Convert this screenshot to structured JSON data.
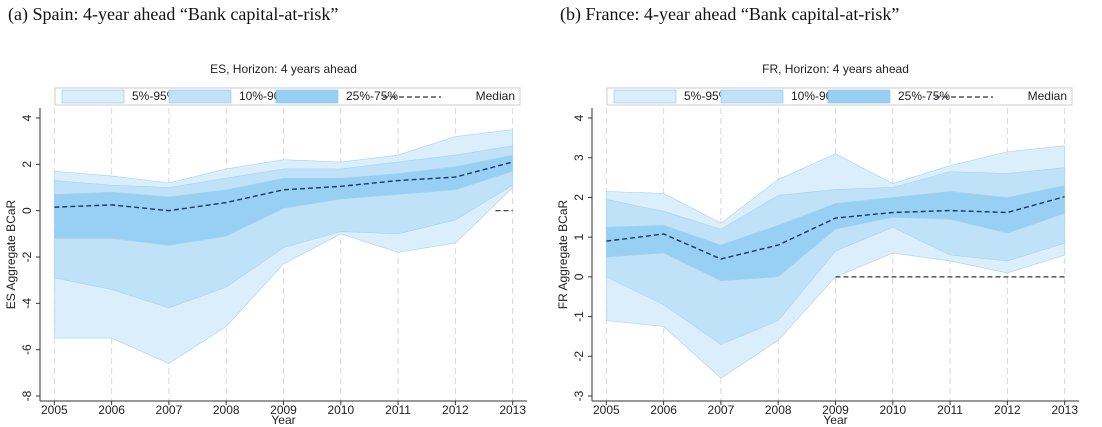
{
  "chart_data": [
    {
      "type": "fan",
      "caption": "(a) Spain: 4-year ahead “Bank capital-at-risk”",
      "title": "ES, Horizon: 4 years ahead",
      "x_label": "Year",
      "y_label": "ES Aggregate BCaR",
      "x": [
        2005,
        2006,
        2007,
        2008,
        2009,
        2010,
        2011,
        2012,
        2013
      ],
      "xlim": [
        2004.75,
        2013.25
      ],
      "xticks": [
        2005,
        2006,
        2007,
        2008,
        2009,
        2010,
        2011,
        2012,
        2013
      ],
      "ylim": [
        -8,
        4
      ],
      "yticks": [
        -8,
        -6,
        -4,
        -2,
        0,
        2,
        4
      ],
      "bands": [
        {
          "name": "5%-95%",
          "color": "#dbeefc",
          "lower": [
            -5.5,
            -5.5,
            -6.6,
            -5.0,
            -2.3,
            -1.0,
            -1.8,
            -1.4,
            1.0
          ],
          "upper": [
            1.7,
            1.5,
            1.2,
            1.8,
            2.2,
            2.1,
            2.4,
            3.2,
            3.5
          ]
        },
        {
          "name": "10%-90%",
          "color": "#c0e2f8",
          "lower": [
            -2.9,
            -3.4,
            -4.2,
            -3.3,
            -1.6,
            -0.9,
            -1.0,
            -0.4,
            1.1
          ],
          "upper": [
            1.3,
            1.1,
            1.0,
            1.4,
            1.8,
            1.8,
            2.1,
            2.4,
            2.8
          ]
        },
        {
          "name": "25%-75%",
          "color": "#97d0f3",
          "lower": [
            -1.2,
            -1.2,
            -1.5,
            -1.1,
            0.1,
            0.5,
            0.7,
            0.9,
            1.7
          ],
          "upper": [
            0.7,
            0.8,
            0.6,
            0.9,
            1.4,
            1.4,
            1.6,
            1.9,
            2.4
          ]
        }
      ],
      "series": [
        {
          "name": "Median",
          "color": "#1b3668",
          "values": [
            0.15,
            0.25,
            0.0,
            0.35,
            0.9,
            1.05,
            1.3,
            1.45,
            2.1
          ]
        }
      ],
      "hline": {
        "y": 0,
        "x": [
          2012.7,
          2013
        ],
        "color": "#333333"
      },
      "grid": true
    },
    {
      "type": "fan",
      "caption": "(b) France: 4-year ahead “Bank capital-at-risk”",
      "title": "FR, Horizon: 4 years ahead",
      "x_label": "Year",
      "y_label": "FR Aggregate BCaR",
      "x": [
        2005,
        2006,
        2007,
        2008,
        2009,
        2010,
        2011,
        2012,
        2013
      ],
      "xlim": [
        2004.75,
        2013.25
      ],
      "xticks": [
        2005,
        2006,
        2007,
        2008,
        2009,
        2010,
        2011,
        2012,
        2013
      ],
      "ylim": [
        -3,
        4
      ],
      "yticks": [
        -3,
        -2,
        -1,
        0,
        1,
        2,
        3,
        4
      ],
      "bands": [
        {
          "name": "5%-95%",
          "color": "#dbeefc",
          "lower": [
            -1.1,
            -1.25,
            -2.55,
            -1.6,
            0.0,
            0.6,
            0.4,
            0.1,
            0.55
          ],
          "upper": [
            2.15,
            2.1,
            1.35,
            2.45,
            3.1,
            2.35,
            2.8,
            3.15,
            3.3
          ]
        },
        {
          "name": "10%-90%",
          "color": "#c0e2f8",
          "lower": [
            0.0,
            -0.7,
            -1.7,
            -1.1,
            0.65,
            1.25,
            0.55,
            0.4,
            0.85
          ],
          "upper": [
            1.95,
            1.65,
            1.2,
            2.05,
            2.2,
            2.25,
            2.65,
            2.6,
            2.75
          ]
        },
        {
          "name": "25%-75%",
          "color": "#97d0f3",
          "lower": [
            0.5,
            0.6,
            -0.1,
            0.0,
            1.2,
            1.5,
            1.45,
            1.1,
            1.6
          ],
          "upper": [
            1.25,
            1.3,
            0.8,
            1.3,
            1.85,
            2.0,
            2.15,
            2.0,
            2.3
          ]
        }
      ],
      "series": [
        {
          "name": "Median",
          "color": "#1b3668",
          "values": [
            0.9,
            1.08,
            0.45,
            0.8,
            1.48,
            1.62,
            1.67,
            1.62,
            2.02
          ]
        }
      ],
      "hline": {
        "y": 0,
        "x": [
          2009,
          2013
        ],
        "color": "#333333"
      },
      "grid": true
    }
  ]
}
